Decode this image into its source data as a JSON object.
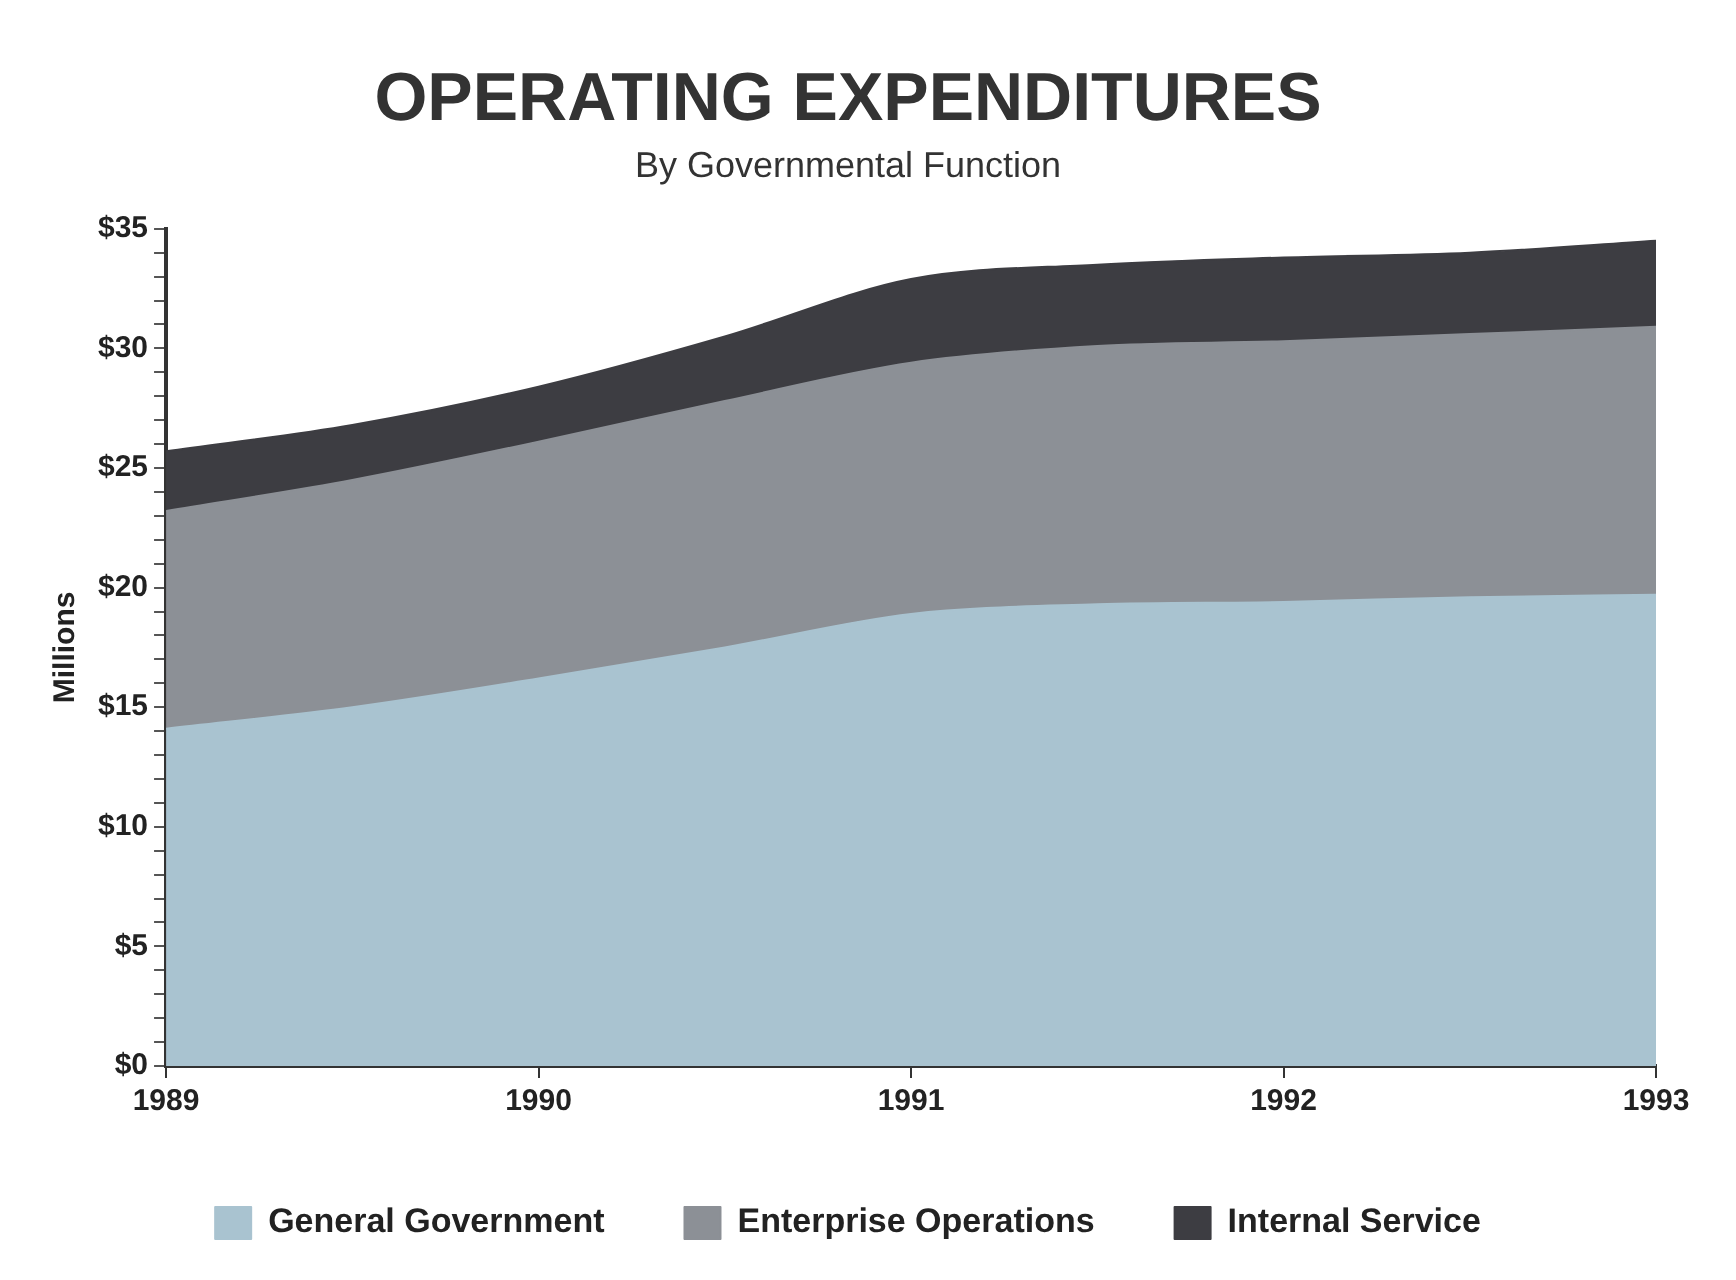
{
  "chart_data": {
    "type": "area",
    "title": "OPERATING EXPENDITURES",
    "subtitle": "By Governmental Function",
    "ylabel": "Millions",
    "stacked": true,
    "x": [
      1989,
      1989.5,
      1990,
      1990.5,
      1991,
      1991.5,
      1992,
      1992.5,
      1993
    ],
    "series": [
      {
        "name": "General Government",
        "color": "#a9c3d0",
        "values": [
          14.1,
          15.0,
          16.2,
          17.5,
          18.9,
          19.3,
          19.4,
          19.6,
          19.7
        ]
      },
      {
        "name": "Enterprise Operations",
        "color": "#8c9096",
        "values": [
          9.1,
          9.5,
          9.9,
          10.3,
          10.5,
          10.8,
          10.9,
          11.0,
          11.2
        ]
      },
      {
        "name": "Internal Service",
        "color": "#3d3d42",
        "values": [
          2.5,
          2.3,
          2.3,
          2.7,
          3.5,
          3.4,
          3.5,
          3.4,
          3.6
        ]
      }
    ],
    "xlim": [
      1989,
      1993
    ],
    "xticks": [
      1989,
      1990,
      1991,
      1992,
      1993
    ],
    "ylim": [
      0,
      35
    ],
    "yticks": [
      {
        "value": 0,
        "label": "$0"
      },
      {
        "value": 1,
        "label": null
      },
      {
        "value": 2,
        "label": null
      },
      {
        "value": 3,
        "label": null
      },
      {
        "value": 4,
        "label": null
      },
      {
        "value": 5,
        "label": "$5"
      },
      {
        "value": 6,
        "label": null
      },
      {
        "value": 7,
        "label": null
      },
      {
        "value": 8,
        "label": null
      },
      {
        "value": 9,
        "label": null
      },
      {
        "value": 10,
        "label": "$10"
      },
      {
        "value": 11,
        "label": null
      },
      {
        "value": 12,
        "label": null
      },
      {
        "value": 13,
        "label": null
      },
      {
        "value": 14,
        "label": null
      },
      {
        "value": 15,
        "label": "$15"
      },
      {
        "value": 16,
        "label": null
      },
      {
        "value": 17,
        "label": null
      },
      {
        "value": 18,
        "label": null
      },
      {
        "value": 19,
        "label": null
      },
      {
        "value": 20,
        "label": "$20"
      },
      {
        "value": 21,
        "label": null
      },
      {
        "value": 22,
        "label": null
      },
      {
        "value": 23,
        "label": null
      },
      {
        "value": 24,
        "label": null
      },
      {
        "value": 25,
        "label": "$25"
      },
      {
        "value": 26,
        "label": null
      },
      {
        "value": 27,
        "label": null
      },
      {
        "value": 28,
        "label": null
      },
      {
        "value": 29,
        "label": null
      },
      {
        "value": 30,
        "label": "$30"
      },
      {
        "value": 31,
        "label": null
      },
      {
        "value": 32,
        "label": null
      },
      {
        "value": 33,
        "label": null
      },
      {
        "value": 34,
        "label": null
      },
      {
        "value": 35,
        "label": "$35"
      }
    ],
    "grid": false,
    "legend": "bottom"
  }
}
